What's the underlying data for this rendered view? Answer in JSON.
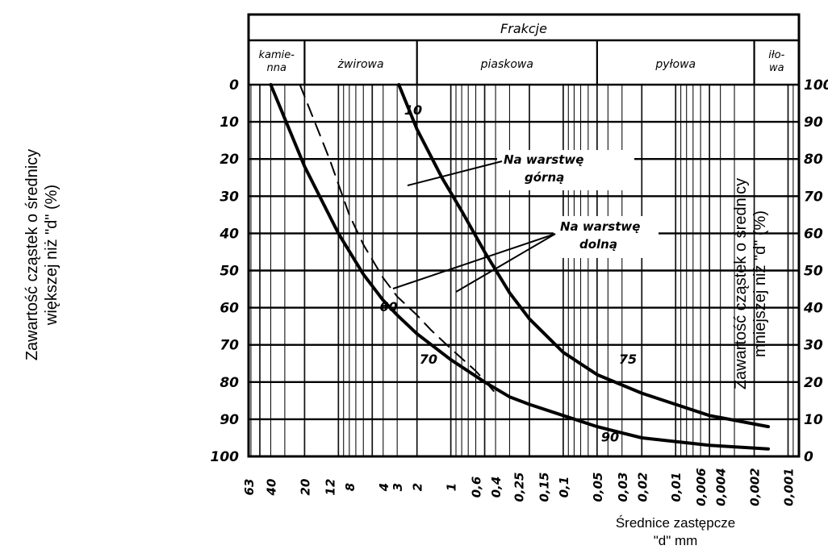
{
  "chart_data": {
    "type": "line",
    "title": "Frakcje",
    "fractions": [
      {
        "label_lines": [
          "kamie-",
          "nna"
        ]
      },
      {
        "label_lines": [
          "żwirowa"
        ]
      },
      {
        "label_lines": [
          "piaskowa"
        ]
      },
      {
        "label_lines": [
          "pyłowa"
        ]
      },
      {
        "label_lines": [
          "iło-",
          "wa"
        ]
      }
    ],
    "ylabel_left_lines": [
      "Zawartość cząstek o średnicy",
      "większej niż \"d\" (%)"
    ],
    "ylabel_right_lines": [
      "Zawartość cząstek o średnicy",
      "mniejszej niż \"d\" (%)"
    ],
    "xlabel_lines": [
      "Średnice zastępcze",
      "\"d\" mm"
    ],
    "x_scale": "log",
    "x_reversed": true,
    "xlim": [
      63,
      0.0008
    ],
    "ylim_left": [
      0,
      100
    ],
    "ylim_left_inverted": true,
    "ylim_right": [
      100,
      0
    ],
    "x_tick_labels": [
      "63",
      "40",
      "20",
      "12",
      "8",
      "4",
      "3",
      "2",
      "1",
      "0.6",
      "0.4",
      "0.25",
      "0.15",
      "0.1",
      "0.05",
      "0.03",
      "0.02",
      "0.01",
      "0.006",
      "0.004",
      "0.002",
      "0.001"
    ],
    "y_left_ticks": [
      "0",
      "10",
      "20",
      "30",
      "40",
      "50",
      "60",
      "70",
      "80",
      "90",
      "100"
    ],
    "y_right_ticks": [
      "100",
      "90",
      "80",
      "70",
      "60",
      "50",
      "40",
      "30",
      "20",
      "10",
      "0"
    ],
    "grid": true,
    "series": [
      {
        "name": "",
        "style": "solid",
        "x": [
          40,
          20,
          10,
          6,
          4,
          3,
          2,
          1,
          0.5,
          0.3,
          0.2,
          0.1,
          0.05,
          0.02,
          0.01,
          0.005,
          0.0015
        ],
        "y": [
          0,
          22,
          40,
          51,
          58,
          62,
          67,
          74,
          80,
          84,
          86,
          89,
          92,
          95,
          96,
          97,
          98
        ]
      },
      {
        "name": "",
        "style": "dashed",
        "x": [
          22,
          12,
          8,
          6,
          4,
          3,
          2,
          1.5,
          1,
          0.6,
          0.4
        ],
        "y": [
          0,
          20,
          35,
          43,
          52,
          57,
          62,
          66,
          71,
          77,
          83
        ]
      },
      {
        "name": "",
        "style": "solid",
        "x": [
          2.9,
          2,
          1.2,
          0.8,
          0.5,
          0.3,
          0.2,
          0.1,
          0.05,
          0.02,
          0.01,
          0.005,
          0.0015
        ],
        "y": [
          0,
          12,
          25,
          34,
          45,
          56,
          63,
          72,
          78,
          83,
          86,
          89,
          92
        ]
      }
    ],
    "annotations": [
      {
        "text": "10",
        "x": 2.6,
        "y": 8
      },
      {
        "text": "60",
        "x": 4.3,
        "y": 61
      },
      {
        "text": "70",
        "x": 1.9,
        "y": 75
      },
      {
        "text": "75",
        "x": 0.032,
        "y": 75
      },
      {
        "text": "90",
        "x": 0.046,
        "y": 96
      }
    ],
    "callouts": [
      {
        "lines": [
          "Na warstwę",
          "górną"
        ]
      },
      {
        "lines": [
          "Na warstwę",
          "dolną"
        ]
      }
    ]
  }
}
